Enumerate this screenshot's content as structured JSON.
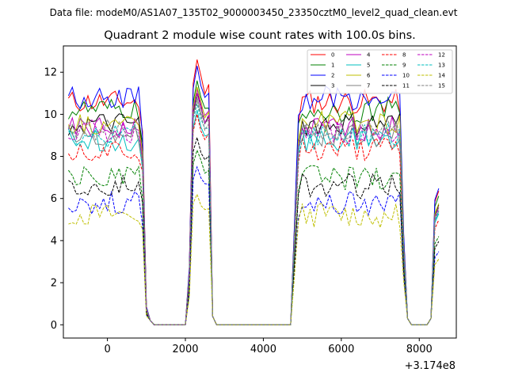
{
  "header": {
    "data_file": "Data file: modeM0/AS1A07_135T02_9000003450_23350cztM0_level2_quad_clean.evt"
  },
  "chart_data": {
    "type": "line",
    "title": "Quadrant 2 module wise count rates with 100.0s bins.",
    "xlabel": "",
    "ylabel": "",
    "offset_label": "+3.174e8",
    "xlim": [
      -1130,
      8950
    ],
    "ylim": [
      -0.63,
      13.25
    ],
    "xticks": [
      0,
      2000,
      4000,
      6000,
      8000
    ],
    "yticks": [
      0,
      2,
      4,
      6,
      8,
      10,
      12
    ],
    "legend_position": "top-right",
    "x": [
      -1000,
      -900,
      -800,
      -700,
      -600,
      -500,
      -400,
      -300,
      -200,
      -100,
      0,
      100,
      200,
      300,
      400,
      500,
      600,
      700,
      800,
      900,
      1000,
      1100,
      1200,
      1300,
      1400,
      1500,
      1600,
      1700,
      1800,
      1900,
      2000,
      2100,
      2200,
      2300,
      2400,
      2500,
      2600,
      2700,
      2800,
      2900,
      3000,
      3100,
      3200,
      3300,
      3400,
      3500,
      3600,
      3700,
      3800,
      3900,
      4000,
      4100,
      4200,
      4300,
      4400,
      4500,
      4600,
      4700,
      4800,
      4900,
      5000,
      5100,
      5200,
      5300,
      5400,
      5500,
      5600,
      5700,
      5800,
      5900,
      6000,
      6100,
      6200,
      6300,
      6400,
      6500,
      6600,
      6700,
      6800,
      6900,
      7000,
      7100,
      7200,
      7300,
      7400,
      7500,
      7600,
      7700,
      7800,
      7900,
      8000,
      8100,
      8200,
      8300,
      8400,
      8500
    ],
    "series": [
      {
        "name": "0",
        "color": "#ff0000",
        "dash": "solid",
        "level": 10.6,
        "peak": 12.6
      },
      {
        "name": "1",
        "color": "#008000",
        "dash": "solid",
        "level": 10.2,
        "peak": 11.6
      },
      {
        "name": "2",
        "color": "#0000ff",
        "dash": "solid",
        "level": 10.8,
        "peak": 12.3
      },
      {
        "name": "3",
        "color": "#000000",
        "dash": "solid",
        "level": 9.5,
        "peak": 11.0
      },
      {
        "name": "4",
        "color": "#bf00bf",
        "dash": "solid",
        "level": 9.3,
        "peak": 11.2
      },
      {
        "name": "5",
        "color": "#00bfbf",
        "dash": "solid",
        "level": 8.8,
        "peak": 10.2
      },
      {
        "name": "6",
        "color": "#bfbf00",
        "dash": "solid",
        "level": 9.6,
        "peak": 11.3
      },
      {
        "name": "7",
        "color": "#808080",
        "dash": "solid",
        "level": 9.0,
        "peak": 10.8
      },
      {
        "name": "8",
        "color": "#ff0000",
        "dash": "dashed",
        "level": 8.3,
        "peak": 10.0
      },
      {
        "name": "9",
        "color": "#008000",
        "dash": "dashed",
        "level": 7.0,
        "peak": 8.3
      },
      {
        "name": "10",
        "color": "#0000ff",
        "dash": "dashed",
        "level": 5.8,
        "peak": 7.5
      },
      {
        "name": "11",
        "color": "#000000",
        "dash": "dashed",
        "level": 6.6,
        "peak": 8.9
      },
      {
        "name": "12",
        "color": "#bf00bf",
        "dash": "dashed",
        "level": 9.2,
        "peak": 11.0
      },
      {
        "name": "13",
        "color": "#00bfbf",
        "dash": "dashed",
        "level": 9.0,
        "peak": 10.5
      },
      {
        "name": "14",
        "color": "#bfbf00",
        "dash": "dashed",
        "level": 5.2,
        "peak": 6.2
      },
      {
        "name": "15",
        "color": "#808080",
        "dash": "dashed",
        "level": 9.3,
        "peak": 10.6
      }
    ]
  }
}
